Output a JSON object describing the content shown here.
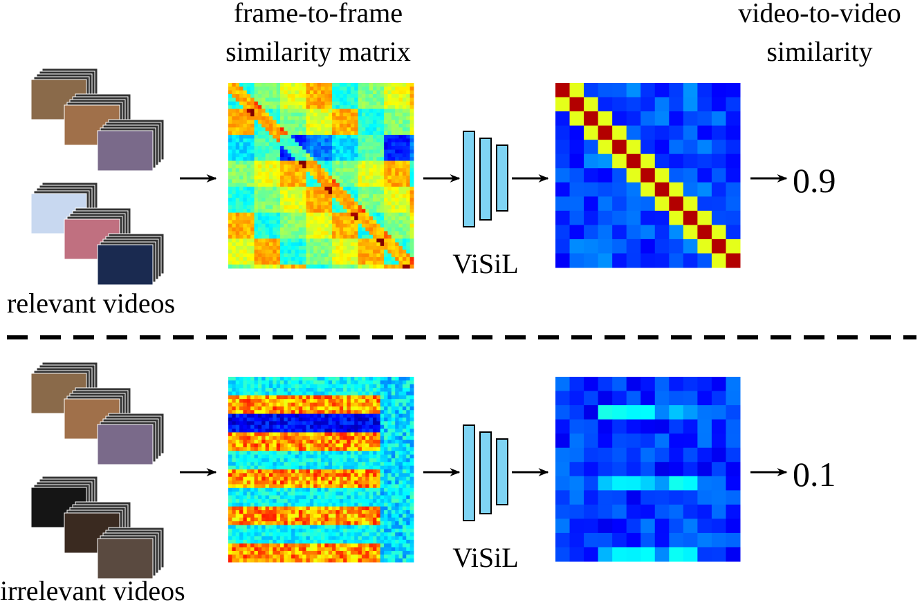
{
  "header": {
    "matrix_label": [
      "frame-to-frame",
      "similarity matrix"
    ],
    "output_label": [
      "video-to-video",
      "similarity"
    ]
  },
  "rows": [
    {
      "videos_label": "relevant videos",
      "model_label": "ViSiL",
      "score": 0.9
    },
    {
      "videos_label": "irrelevant videos",
      "model_label": "ViSiL",
      "score": 0.1
    }
  ]
}
